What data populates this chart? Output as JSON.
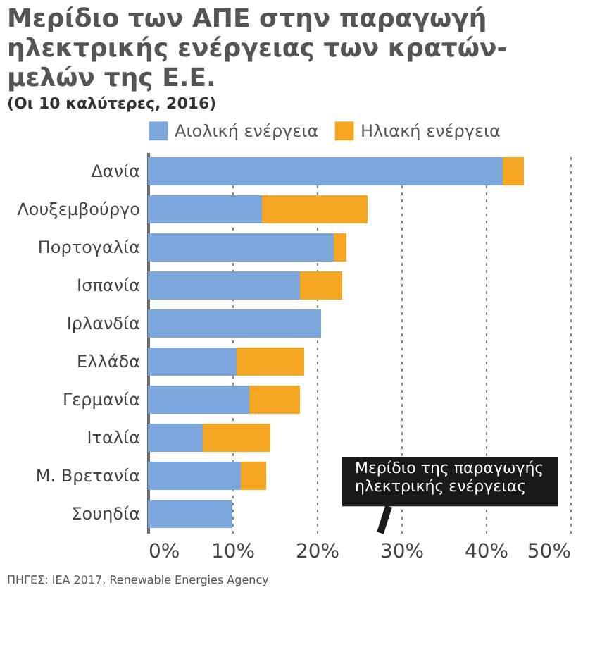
{
  "chart_data": {
    "type": "bar",
    "orientation": "horizontal",
    "stacked": true,
    "title": "Μερίδιο των ΑΠΕ στην παραγωγή ηλεκτρικής ενέργειας των κρατών-μελών της Ε.Ε.",
    "subtitle": "(Οι 10 καλύτερες, 2016)",
    "categories": [
      "Δανία",
      "Λουξεμβούργο",
      "Πορτογαλία",
      "Ισπανία",
      "Ιρλανδία",
      "Ελλάδα",
      "Γερμανία",
      "Ιταλία",
      "Μ. Βρετανία",
      "Σουηδία"
    ],
    "series": [
      {
        "name": "Αιολική ενέργεια",
        "color": "#7aa6dc",
        "values": [
          42,
          13.5,
          22,
          18,
          20.5,
          10.5,
          12,
          6.5,
          11,
          10
        ]
      },
      {
        "name": "Ηλιακή ενέργεια",
        "color": "#f5a623",
        "values": [
          2.5,
          12.5,
          1.5,
          5,
          0,
          8,
          6,
          8,
          3,
          0
        ]
      }
    ],
    "xlim": [
      0,
      50
    ],
    "xticks": [
      {
        "value": 0,
        "label": "0%"
      },
      {
        "value": 10,
        "label": "10%"
      },
      {
        "value": 20,
        "label": "20%"
      },
      {
        "value": 30,
        "label": "30%"
      },
      {
        "value": 40,
        "label": "40%"
      },
      {
        "value": 50,
        "label": "50%"
      }
    ],
    "grid": "x",
    "legend": "top",
    "annotations": [
      "Μερίδιο της παραγωγής ηλεκτρικής ενέργειας",
      "ΠΗΓΕΣ: IEA 2017, Renewable Energies Agency"
    ]
  }
}
